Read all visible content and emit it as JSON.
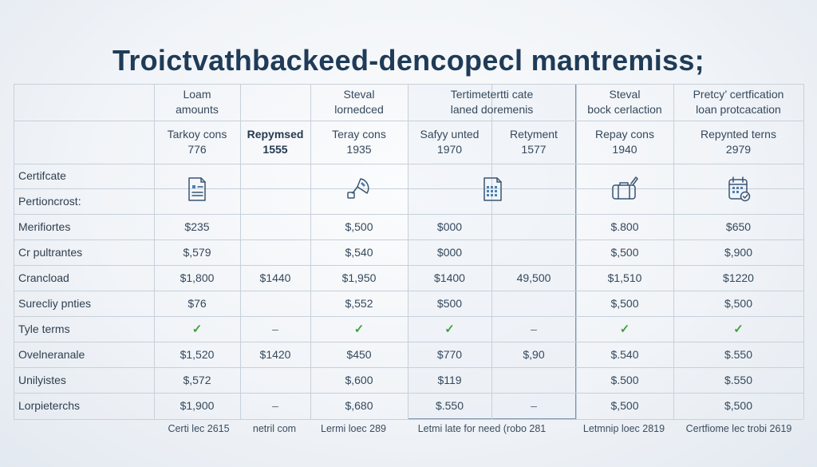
{
  "title": "Troictvathbackeed-dencopecl mantremiss;",
  "colors": {
    "title": "#1f3b57",
    "check": "#3fa23f",
    "grid": "#c7d0da",
    "highlight_border": "#7d92ac"
  },
  "header": {
    "row1": [
      "",
      "Loam\namounts",
      "",
      "Steval\nlornedced",
      "Tertimetertti cate\nlaned doremenis",
      "Steval\nbock cerlaction",
      "Pretcy’ certfication\nloan protcacation"
    ],
    "row2": [
      {
        "text": "Tarkoy cons\n776",
        "bold": false
      },
      {
        "text": "Repymsed\n1555",
        "bold": true
      },
      {
        "text": "Teray cons\n1935",
        "bold": false
      },
      {
        "text": "Safyy unted\n1970",
        "bold": false
      },
      {
        "text": "Retyment\n1577",
        "bold": false
      },
      {
        "text": "Repay cons\n1940",
        "bold": false
      },
      {
        "text": "Repynted terns\n2979",
        "bold": false
      }
    ]
  },
  "rows": [
    {
      "label": "Certifcate"
    },
    {
      "label": "Pertioncrost:"
    },
    {
      "label": "Merifiortes",
      "values": [
        "$235",
        "",
        "$,500",
        "$000",
        "",
        "$.800",
        "$650"
      ]
    },
    {
      "label": "Cr pultrantes",
      "values": [
        "$,579",
        "",
        "$,540",
        "$000",
        "",
        "$,500",
        "$,900"
      ]
    },
    {
      "label": "Crancload",
      "values": [
        "$1,800",
        "$1440",
        "$1,950",
        "$1400",
        "49,500",
        "$1,510",
        "$1220"
      ]
    },
    {
      "label": "Surecliy pnties",
      "values": [
        "$76",
        "",
        "$,552",
        "$500",
        "",
        "$,500",
        "$,500"
      ]
    },
    {
      "label": "Tyle terms",
      "values": [
        "✓",
        "–",
        "✓",
        "✓",
        "–",
        "✓",
        "✓"
      ]
    },
    {
      "label": "Ovelneranale",
      "values": [
        "$1,520",
        "$1420",
        "$450",
        "$770",
        "$,90",
        "$.540",
        "$.550"
      ]
    },
    {
      "label": "Unilyistes",
      "values": [
        "$,572",
        "",
        "$,600",
        "$119",
        "",
        "$.500",
        "$.550"
      ]
    },
    {
      "label": "Lorpieterchs",
      "values": [
        "$1,900",
        "–",
        "$,680",
        "$.550",
        "–",
        "$,500",
        "$,500"
      ]
    }
  ],
  "icons": [
    "document-icon",
    "satellite-dish-icon",
    "calendar-grid-icon",
    "briefcase-icon",
    "calendar-check-icon"
  ],
  "footer": [
    "Certi lec 2615",
    "netril com",
    "Lermi loec 289",
    "Letmi late for need (robo 281",
    "Letmnip loec 2819",
    "Certfiome lec trobi 2619"
  ]
}
